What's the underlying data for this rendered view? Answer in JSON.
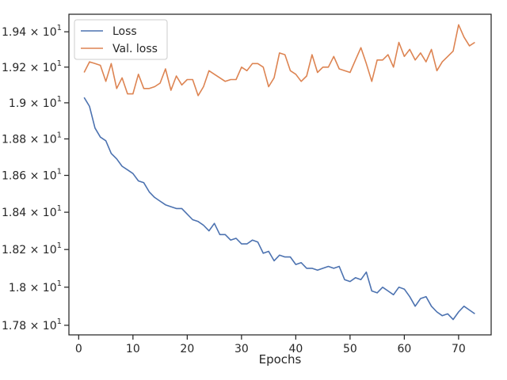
{
  "chart_data": {
    "type": "line",
    "title": "",
    "xlabel": "Epochs",
    "ylabel": "",
    "xlim": [
      -1.8,
      76
    ],
    "ylim": [
      17.75,
      19.5
    ],
    "yscale": "log",
    "grid": false,
    "legend_position": "top-left",
    "x_ticks": [
      0,
      10,
      20,
      30,
      40,
      50,
      60,
      70
    ],
    "x_tick_labels": [
      "0",
      "10",
      "20",
      "30",
      "40",
      "50",
      "60",
      "70"
    ],
    "y_ticks": [
      17.8,
      18.0,
      18.2,
      18.4,
      18.6,
      18.8,
      19.0,
      19.2,
      19.4
    ],
    "y_tick_labels": [
      {
        "base": "1.78 × 10",
        "exp": "1"
      },
      {
        "base": "1.8 × 10",
        "exp": "1"
      },
      {
        "base": "1.82 × 10",
        "exp": "1"
      },
      {
        "base": "1.84 × 10",
        "exp": "1"
      },
      {
        "base": "1.86 × 10",
        "exp": "1"
      },
      {
        "base": "1.88 × 10",
        "exp": "1"
      },
      {
        "base": "1.9 × 10",
        "exp": "1"
      },
      {
        "base": "1.92 × 10",
        "exp": "1"
      },
      {
        "base": "1.94 × 10",
        "exp": "1"
      }
    ],
    "x": [
      1,
      2,
      3,
      4,
      5,
      6,
      7,
      8,
      9,
      10,
      11,
      12,
      13,
      14,
      15,
      16,
      17,
      18,
      19,
      20,
      21,
      22,
      23,
      24,
      25,
      26,
      27,
      28,
      29,
      30,
      31,
      32,
      33,
      34,
      35,
      36,
      37,
      38,
      39,
      40,
      41,
      42,
      43,
      44,
      45,
      46,
      47,
      48,
      49,
      50,
      51,
      52,
      53,
      54,
      55,
      56,
      57,
      58,
      59,
      60,
      61,
      62,
      63,
      64,
      65,
      66,
      67,
      68,
      69,
      70,
      71,
      72,
      73
    ],
    "series": [
      {
        "name": "Loss",
        "color": "#4c72b0",
        "values": [
          19.03,
          18.98,
          18.86,
          18.81,
          18.79,
          18.72,
          18.69,
          18.65,
          18.63,
          18.61,
          18.57,
          18.56,
          18.51,
          18.48,
          18.46,
          18.44,
          18.43,
          18.42,
          18.42,
          18.39,
          18.36,
          18.35,
          18.33,
          18.3,
          18.34,
          18.28,
          18.28,
          18.25,
          18.26,
          18.23,
          18.23,
          18.25,
          18.24,
          18.18,
          18.19,
          18.14,
          18.17,
          18.16,
          18.16,
          18.12,
          18.13,
          18.1,
          18.1,
          18.09,
          18.1,
          18.11,
          18.1,
          18.11,
          18.04,
          18.03,
          18.05,
          18.04,
          18.08,
          17.98,
          17.97,
          18.0,
          17.98,
          17.96,
          18.0,
          17.99,
          17.95,
          17.9,
          17.94,
          17.95,
          17.9,
          17.87,
          17.85,
          17.86,
          17.83,
          17.87,
          17.9,
          17.88,
          17.86
        ]
      },
      {
        "name": "Val. loss",
        "color": "#dd8452",
        "values": [
          19.17,
          19.23,
          19.22,
          19.21,
          19.12,
          19.22,
          19.08,
          19.14,
          19.05,
          19.05,
          19.16,
          19.08,
          19.08,
          19.09,
          19.11,
          19.19,
          19.07,
          19.15,
          19.1,
          19.13,
          19.13,
          19.04,
          19.09,
          19.18,
          19.16,
          19.14,
          19.12,
          19.13,
          19.13,
          19.2,
          19.18,
          19.22,
          19.22,
          19.2,
          19.09,
          19.14,
          19.28,
          19.27,
          19.18,
          19.16,
          19.12,
          19.15,
          19.27,
          19.17,
          19.2,
          19.2,
          19.26,
          19.19,
          19.18,
          19.17,
          19.24,
          19.31,
          19.22,
          19.12,
          19.24,
          19.24,
          19.27,
          19.2,
          19.34,
          19.26,
          19.3,
          19.24,
          19.28,
          19.23,
          19.3,
          19.18,
          19.23,
          19.26,
          19.29,
          19.44,
          19.37,
          19.32,
          19.34
        ]
      }
    ]
  }
}
